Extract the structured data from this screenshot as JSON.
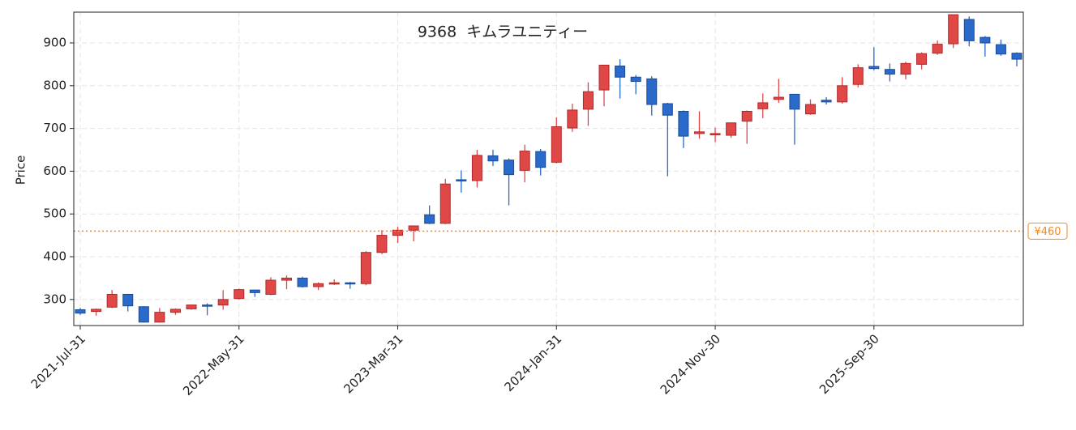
{
  "chart_data": {
    "type": "candlestick",
    "title": "9368  キムラユニティー",
    "ylabel": "Price",
    "x": [
      "2021-Jul-31",
      "2021-Aug-31",
      "2021-Sep-30",
      "2021-Oct-31",
      "2021-Nov-30",
      "2021-Dec-31",
      "2022-Jan-31",
      "2022-Feb-28",
      "2022-Mar-31",
      "2022-Apr-30",
      "2022-May-31",
      "2022-Jun-30",
      "2022-Jul-31",
      "2022-Aug-31",
      "2022-Sep-30",
      "2022-Oct-31",
      "2022-Nov-30",
      "2022-Dec-31",
      "2023-Jan-31",
      "2023-Feb-28",
      "2023-Mar-31",
      "2023-Apr-30",
      "2023-May-31",
      "2023-Jun-30",
      "2023-Jul-31",
      "2023-Aug-31",
      "2023-Sep-30",
      "2023-Oct-31",
      "2023-Nov-30",
      "2023-Dec-31",
      "2024-Jan-31",
      "2024-Feb-29",
      "2024-Mar-31",
      "2024-Apr-30",
      "2024-May-31",
      "2024-Jun-30",
      "2024-Jul-31",
      "2024-Aug-31",
      "2024-Sep-30",
      "2024-Oct-31",
      "2024-Nov-30",
      "2024-Dec-31",
      "2025-Jan-31",
      "2025-Feb-28",
      "2025-Mar-31",
      "2025-Apr-30",
      "2025-May-31",
      "2025-Jun-30",
      "2025-Jul-31",
      "2025-Aug-31",
      "2025-Sep-30",
      "2025-Oct-31",
      "2025-Nov-30",
      "2025-Dec-31",
      "2026-Jan-31",
      "2026-Feb-28",
      "2026-Mar-31",
      "2026-Apr-30",
      "2026-May-31",
      "2026-Jun-30"
    ],
    "open": [
      276,
      272,
      282,
      312,
      283,
      247,
      270,
      278,
      287,
      287,
      302,
      322,
      312,
      345,
      350,
      330,
      336,
      339,
      337,
      410,
      450,
      462,
      498,
      478,
      580,
      578,
      636,
      626,
      602,
      646,
      621,
      701,
      745,
      790,
      846,
      820,
      816,
      758,
      740,
      688,
      686,
      684,
      717,
      746,
      768,
      780,
      734,
      766,
      762,
      803,
      845,
      838,
      827,
      850,
      876,
      898,
      955,
      913,
      896,
      876
    ],
    "high": [
      280,
      279,
      322,
      313,
      284,
      280,
      279,
      288,
      291,
      322,
      325,
      323,
      352,
      356,
      353,
      340,
      347,
      341,
      413,
      462,
      470,
      472,
      520,
      582,
      602,
      650,
      650,
      630,
      662,
      652,
      726,
      758,
      808,
      848,
      862,
      825,
      822,
      760,
      742,
      740,
      702,
      714,
      742,
      782,
      816,
      780,
      768,
      773,
      820,
      850,
      890,
      852,
      856,
      878,
      906,
      966,
      962,
      916,
      908,
      878
    ],
    "low": [
      264,
      262,
      280,
      272,
      246,
      246,
      264,
      276,
      263,
      276,
      300,
      306,
      310,
      324,
      328,
      322,
      334,
      325,
      333,
      406,
      432,
      436,
      476,
      476,
      550,
      562,
      612,
      520,
      574,
      590,
      618,
      692,
      706,
      752,
      770,
      780,
      730,
      588,
      654,
      676,
      668,
      678,
      664,
      724,
      760,
      662,
      732,
      756,
      758,
      796,
      836,
      810,
      815,
      838,
      872,
      888,
      892,
      868,
      870,
      845
    ],
    "close": [
      268,
      277,
      312,
      285,
      247,
      270,
      277,
      287,
      285,
      300,
      323,
      316,
      345,
      350,
      330,
      337,
      339,
      337,
      410,
      450,
      462,
      472,
      478,
      570,
      577,
      637,
      624,
      592,
      647,
      609,
      704,
      743,
      786,
      848,
      820,
      810,
      756,
      731,
      682,
      692,
      688,
      713,
      740,
      760,
      773,
      745,
      756,
      762,
      800,
      842,
      840,
      827,
      852,
      875,
      897,
      966,
      905,
      900,
      874,
      862
    ],
    "up_color": "#e04848",
    "down_color": "#2a6acb",
    "ylim": [
      239,
      972
    ],
    "yticks": [
      300,
      400,
      500,
      600,
      700,
      800,
      900
    ],
    "xticks": [
      "2021-Jul-31",
      "2022-May-31",
      "2023-Mar-31",
      "2024-Jan-31",
      "2024-Nov-30",
      "2025-Sep-30"
    ],
    "grid": true,
    "ref_line": {
      "value": 460,
      "label": "¥460",
      "color": "#f08a24"
    }
  }
}
